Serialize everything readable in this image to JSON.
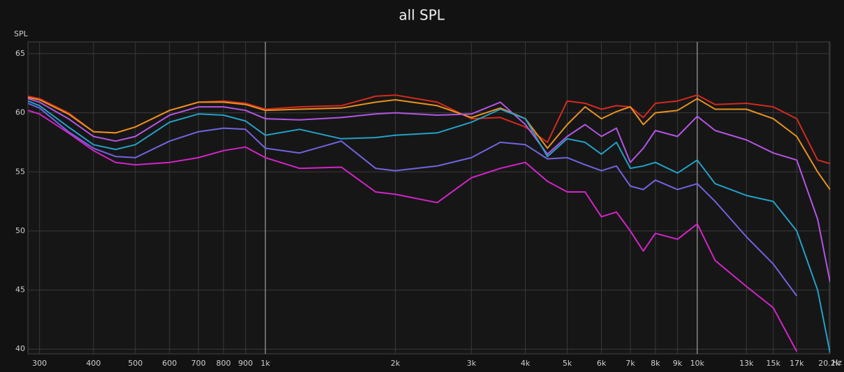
{
  "chart_data": {
    "type": "line",
    "title": "all SPL",
    "y_label": "SPL",
    "x_label": "Hz",
    "x_scale": "log",
    "grid": true,
    "xlim": [
      282,
      20300
    ],
    "ylim": [
      39.6,
      66
    ],
    "xticks": [
      300,
      400,
      500,
      600,
      700,
      800,
      900,
      {
        "value": 1000,
        "label": "1k"
      },
      {
        "value": 2000,
        "label": "2k"
      },
      {
        "value": 3000,
        "label": "3k"
      },
      {
        "value": 4000,
        "label": "4k"
      },
      {
        "value": 5000,
        "label": "5k"
      },
      {
        "value": 6000,
        "label": "6k"
      },
      {
        "value": 7000,
        "label": "7k"
      },
      {
        "value": 8000,
        "label": "8k"
      },
      {
        "value": 9000,
        "label": "9k"
      },
      {
        "value": 10000,
        "label": "10k"
      },
      {
        "value": 13000,
        "label": "13k"
      },
      {
        "value": 15000,
        "label": "15k"
      },
      {
        "value": 17000,
        "label": "17k"
      },
      {
        "value": 20200,
        "label": "20.2k"
      }
    ],
    "yticks": [
      40,
      45,
      50,
      55,
      60,
      65
    ],
    "x": [
      282,
      300,
      350,
      400,
      450,
      500,
      600,
      700,
      800,
      900,
      1000,
      1200,
      1500,
      1800,
      2000,
      2500,
      3000,
      3500,
      4000,
      4500,
      5000,
      5500,
      6000,
      6500,
      7000,
      7500,
      8000,
      9000,
      10000,
      11000,
      13000,
      15000,
      17000,
      19000,
      20300
    ],
    "series": [
      {
        "color": "#d42a1e",
        "values": [
          61.4,
          61.2,
          60,
          58.4,
          58.3,
          58.8,
          60.2,
          60.9,
          61.0,
          60.8,
          60.3,
          60.5,
          60.6,
          61.4,
          61.5,
          60.9,
          59.5,
          59.6,
          58.8,
          57.5,
          61,
          60.8,
          60.3,
          60.6,
          60.5,
          59.6,
          60.8,
          61,
          61.5,
          60.7,
          60.8,
          60.5,
          59.5,
          56,
          55.7
        ]
      },
      {
        "color": "#e8921e",
        "values": [
          61.3,
          61.1,
          59.9,
          58.4,
          58.3,
          58.8,
          60.2,
          60.9,
          60.9,
          60.7,
          60.2,
          60.3,
          60.4,
          60.9,
          61.1,
          60.6,
          59.6,
          60.4,
          59.5,
          57,
          59,
          60.5,
          59.5,
          60.1,
          60.5,
          59,
          60,
          60.2,
          61.2,
          60.3,
          60.3,
          59.5,
          58,
          55,
          53.5
        ]
      },
      {
        "color": "#b455e4",
        "values": [
          61.2,
          60.9,
          59.5,
          58,
          57.6,
          58,
          59.8,
          60.5,
          60.5,
          60.2,
          59.5,
          59.4,
          59.6,
          59.9,
          60,
          59.8,
          59.9,
          60.9,
          59,
          56.5,
          58,
          59,
          58,
          58.7,
          55.8,
          57,
          58.5,
          58,
          59.7,
          58.5,
          57.7,
          56.6,
          56,
          51,
          45.7
        ]
      },
      {
        "color": "#22a2c8",
        "values": [
          61,
          60.6,
          58.8,
          57.3,
          56.9,
          57.3,
          59.2,
          59.9,
          59.8,
          59.3,
          58.1,
          58.6,
          57.8,
          57.9,
          58.1,
          58.3,
          59.2,
          60.3,
          59.5,
          56.3,
          57.8,
          57.5,
          56.5,
          57.5,
          55.3,
          55.5,
          55.8,
          54.9,
          56,
          54,
          53,
          52.5,
          50,
          45,
          39.7
        ]
      },
      {
        "color": "#7264e0",
        "values": [
          60.8,
          60.4,
          58.4,
          57,
          56.3,
          56.2,
          57.6,
          58.4,
          58.7,
          58.6,
          57,
          56.6,
          57.6,
          55.3,
          55.1,
          55.5,
          56.2,
          57.5,
          57.3,
          56.1,
          56.2,
          55.6,
          55.1,
          55.5,
          53.8,
          53.5,
          54.3,
          53.5,
          54,
          52.5,
          49.5,
          47.2,
          44.5,
          null,
          null
        ]
      },
      {
        "color": "#d424c8",
        "values": [
          60.2,
          59.9,
          58.3,
          56.8,
          55.8,
          55.6,
          55.8,
          56.2,
          56.8,
          57.1,
          56.2,
          55.3,
          55.4,
          53.3,
          53.1,
          52.4,
          54.5,
          55.3,
          55.8,
          54.2,
          53.3,
          53.3,
          51.2,
          51.6,
          50,
          48.3,
          49.8,
          49.3,
          50.6,
          47.5,
          45.3,
          43.5,
          39.8,
          null,
          null
        ]
      }
    ]
  }
}
